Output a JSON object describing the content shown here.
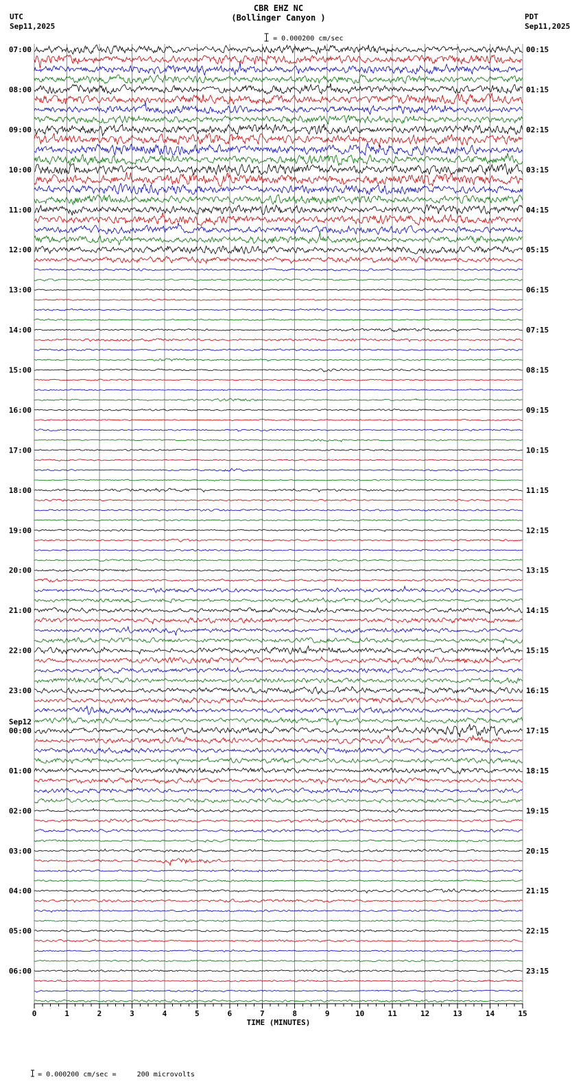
{
  "header": {
    "station": "CBR EHZ NC",
    "location": "(Bollinger Canyon )",
    "left_tz": "UTC",
    "left_date": "Sep11,2025",
    "right_tz": "PDT",
    "right_date": "Sep11,2025",
    "scale_label": "= 0.000200 cm/sec"
  },
  "footer": {
    "scale_note": "= 0.000200 cm/sec =     200 microvolts"
  },
  "chart_data": {
    "type": "line",
    "title": "CBR EHZ NC (Bollinger Canyon ) helicorder record",
    "xlabel": "TIME (MINUTES)",
    "x_range": [
      0,
      15
    ],
    "x_ticks": [
      0,
      1,
      2,
      3,
      4,
      5,
      6,
      7,
      8,
      9,
      10,
      11,
      12,
      13,
      14,
      15
    ],
    "minutes_per_row": 15,
    "rows_per_hour": 4,
    "grid": true,
    "trace_colors": [
      "#000000",
      "#cc0000",
      "#0000cc",
      "#007200"
    ],
    "hours": [
      {
        "utc": "07:00",
        "pdt": "00:15"
      },
      {
        "utc": "08:00",
        "pdt": "01:15"
      },
      {
        "utc": "09:00",
        "pdt": "02:15"
      },
      {
        "utc": "10:00",
        "pdt": "03:15"
      },
      {
        "utc": "11:00",
        "pdt": "04:15"
      },
      {
        "utc": "12:00",
        "pdt": "05:15"
      },
      {
        "utc": "13:00",
        "pdt": "06:15"
      },
      {
        "utc": "14:00",
        "pdt": "07:15"
      },
      {
        "utc": "15:00",
        "pdt": "08:15"
      },
      {
        "utc": "16:00",
        "pdt": "09:15"
      },
      {
        "utc": "17:00",
        "pdt": "10:15"
      },
      {
        "utc": "18:00",
        "pdt": "11:15"
      },
      {
        "utc": "19:00",
        "pdt": "12:15"
      },
      {
        "utc": "20:00",
        "pdt": "13:15"
      },
      {
        "utc": "21:00",
        "pdt": "14:15"
      },
      {
        "utc": "22:00",
        "pdt": "15:15"
      },
      {
        "utc": "23:00",
        "pdt": "16:15"
      },
      {
        "utc": "00:00",
        "pdt": "17:15",
        "date_note": "Sep12"
      },
      {
        "utc": "01:00",
        "pdt": "18:15"
      },
      {
        "utc": "02:00",
        "pdt": "19:15"
      },
      {
        "utc": "03:00",
        "pdt": "20:15"
      },
      {
        "utc": "04:00",
        "pdt": "21:15"
      },
      {
        "utc": "05:00",
        "pdt": "22:15"
      },
      {
        "utc": "06:00",
        "pdt": "23:15"
      }
    ],
    "rows": [
      {
        "amp": 4.6
      },
      {
        "amp": 5.0
      },
      {
        "amp": 5.0
      },
      {
        "amp": 4.4
      },
      {
        "amp": 5.0
      },
      {
        "amp": 5.4
      },
      {
        "amp": 4.6
      },
      {
        "amp": 4.4
      },
      {
        "amp": 5.4
      },
      {
        "amp": 5.8
      },
      {
        "amp": 5.8
      },
      {
        "amp": 5.2
      },
      {
        "amp": 5.8
      },
      {
        "amp": 6.2
      },
      {
        "amp": 5.4
      },
      {
        "amp": 4.8
      },
      {
        "amp": 4.8
      },
      {
        "amp": 5.2
      },
      {
        "amp": 4.4
      },
      {
        "amp": 4.2
      },
      {
        "amp": 4.2
      },
      {
        "amp": 3.2
      },
      {
        "amp": 1.2
      },
      {
        "amp": 1.0
      },
      {
        "amp": 0.8
      },
      {
        "amp": 0.8
      },
      {
        "amp": 0.9
      },
      {
        "amp": 0.8
      },
      {
        "amp": 1.0,
        "events": [
          {
            "m": 10.8,
            "a": 0.9,
            "w": 1.2
          }
        ]
      },
      {
        "amp": 1.4
      },
      {
        "amp": 1.0
      },
      {
        "amp": 0.9,
        "events": [
          {
            "m": 4.2,
            "a": 1.2,
            "w": 0.4
          }
        ]
      },
      {
        "amp": 0.9,
        "events": [
          {
            "m": 8.8,
            "a": 0.8,
            "w": 0.5
          }
        ]
      },
      {
        "amp": 0.8
      },
      {
        "amp": 0.7
      },
      {
        "amp": 0.9,
        "events": [
          {
            "m": 6.3,
            "a": 0.9,
            "w": 0.5
          }
        ]
      },
      {
        "amp": 0.9
      },
      {
        "amp": 0.8
      },
      {
        "amp": 0.9
      },
      {
        "amp": 0.8,
        "events": [
          {
            "m": 8.8,
            "a": 1.0,
            "w": 0.5
          }
        ]
      },
      {
        "amp": 0.8
      },
      {
        "amp": 0.8
      },
      {
        "amp": 0.8,
        "events": [
          {
            "m": 6.1,
            "a": 1.6,
            "w": 0.25
          }
        ]
      },
      {
        "amp": 0.7
      },
      {
        "amp": 1.2,
        "events": [
          {
            "m": 4.0,
            "a": 1.0,
            "w": 0.8
          }
        ]
      },
      {
        "amp": 0.9
      },
      {
        "amp": 1.0
      },
      {
        "amp": 0.9
      },
      {
        "amp": 1.0
      },
      {
        "amp": 1.0,
        "events": [
          {
            "m": 4.4,
            "a": 1.0,
            "w": 0.3
          }
        ]
      },
      {
        "amp": 0.9
      },
      {
        "amp": 1.0
      },
      {
        "amp": 1.2
      },
      {
        "amp": 1.2,
        "events": [
          {
            "m": 0.6,
            "a": 1.2,
            "w": 0.3
          },
          {
            "m": 9.0,
            "a": 1.0,
            "w": 0.4
          }
        ]
      },
      {
        "amp": 2.2
      },
      {
        "amp": 2.2
      },
      {
        "amp": 2.5
      },
      {
        "amp": 2.8
      },
      {
        "amp": 2.5
      },
      {
        "amp": 2.8
      },
      {
        "amp": 3.1,
        "events": [
          {
            "m": 9.0,
            "a": 1.5,
            "w": 1.0
          }
        ]
      },
      {
        "amp": 3.1
      },
      {
        "amp": 2.5
      },
      {
        "amp": 2.8
      },
      {
        "amp": 3.1,
        "events": [
          {
            "m": 9.3,
            "a": 1.8,
            "w": 0.8
          }
        ]
      },
      {
        "amp": 3.0
      },
      {
        "amp": 3.0,
        "events": [
          {
            "m": 2.0,
            "a": 1.2,
            "w": 0.4
          }
        ]
      },
      {
        "amp": 2.8
      },
      {
        "amp": 3.4,
        "events": [
          {
            "m": 13.1,
            "a": 6.0,
            "w": 0.28
          },
          {
            "m": 13.9,
            "a": 5.0,
            "w": 0.22
          }
        ]
      },
      {
        "amp": 3.1,
        "events": [
          {
            "m": 13.8,
            "a": 2.0,
            "w": 0.3
          }
        ]
      },
      {
        "amp": 2.8
      },
      {
        "amp": 2.8
      },
      {
        "amp": 3.0
      },
      {
        "amp": 2.8
      },
      {
        "amp": 2.5
      },
      {
        "amp": 2.2
      },
      {
        "amp": 1.6
      },
      {
        "amp": 1.6
      },
      {
        "amp": 1.4
      },
      {
        "amp": 1.3
      },
      {
        "amp": 1.4
      },
      {
        "amp": 1.2,
        "events": [
          {
            "m": 4.8,
            "a": 3.2,
            "w": 0.55
          }
        ]
      },
      {
        "amp": 1.1
      },
      {
        "amp": 1.1
      },
      {
        "amp": 1.2,
        "events": [
          {
            "m": 12.9,
            "a": 1.4,
            "w": 0.8
          }
        ]
      },
      {
        "amp": 1.3,
        "events": [
          {
            "m": 6.5,
            "a": 0.8,
            "w": 1.0
          }
        ]
      },
      {
        "amp": 1.1
      },
      {
        "amp": 1.0
      },
      {
        "amp": 1.2
      },
      {
        "amp": 1.1
      },
      {
        "amp": 0.9
      },
      {
        "amp": 0.9
      },
      {
        "amp": 1.1
      },
      {
        "amp": 1.0
      },
      {
        "amp": 0.9
      },
      {
        "amp": 1.3
      }
    ]
  }
}
